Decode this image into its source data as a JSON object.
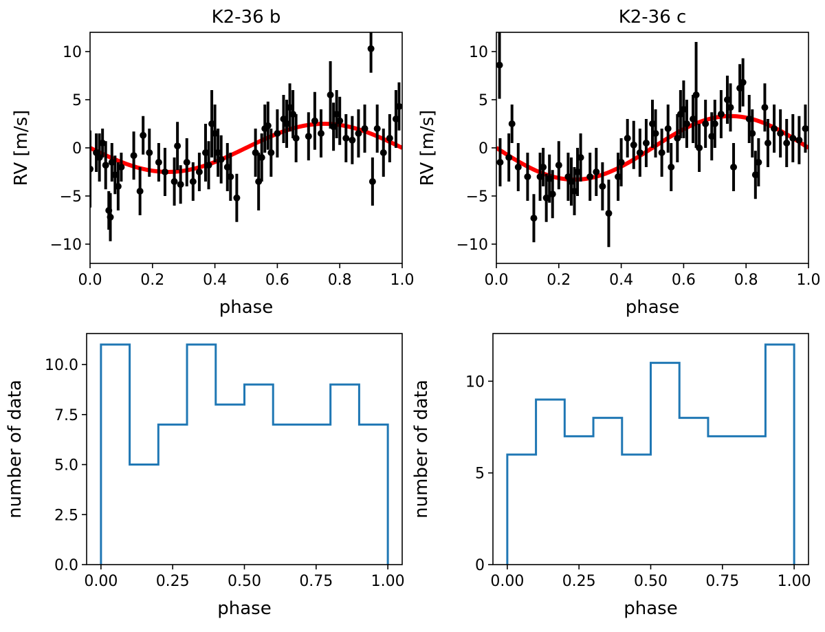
{
  "chart_data": [
    {
      "id": "rv_b",
      "type": "scatter",
      "title": "K2-36 b",
      "xlabel": "phase",
      "ylabel": "RV [m/s]",
      "xlim": [
        0.0,
        1.0
      ],
      "ylim": [
        -12,
        12
      ],
      "xticks": [
        0.0,
        0.2,
        0.4,
        0.6,
        0.8,
        1.0
      ],
      "xtick_labels": [
        "0.0",
        "0.2",
        "0.4",
        "0.6",
        "0.8",
        "1.0"
      ],
      "yticks": [
        -10,
        -5,
        0,
        5,
        10
      ],
      "ytick_labels": [
        "−10",
        "−5",
        "0",
        "5",
        "10"
      ],
      "model": {
        "name": "model",
        "type": "sinusoid",
        "amplitude": 2.5,
        "color": "#ff0000"
      },
      "points": [
        {
          "x": 0.0,
          "y": -2.2,
          "err": 4.0
        },
        {
          "x": 0.02,
          "y": -0.5,
          "err": 2.0
        },
        {
          "x": 0.03,
          "y": -1.0,
          "err": 2.5
        },
        {
          "x": 0.04,
          "y": 0.5,
          "err": 1.5
        },
        {
          "x": 0.05,
          "y": -1.8,
          "err": 2.5
        },
        {
          "x": 0.06,
          "y": -6.5,
          "err": 2.0
        },
        {
          "x": 0.065,
          "y": -7.2,
          "err": 2.5
        },
        {
          "x": 0.07,
          "y": -1.5,
          "err": 2.0
        },
        {
          "x": 0.08,
          "y": -2.8,
          "err": 2.0
        },
        {
          "x": 0.09,
          "y": -4.0,
          "err": 2.5
        },
        {
          "x": 0.1,
          "y": -2.0,
          "err": 1.5
        },
        {
          "x": 0.14,
          "y": -0.8,
          "err": 2.5
        },
        {
          "x": 0.16,
          "y": -4.5,
          "err": 2.5
        },
        {
          "x": 0.17,
          "y": 1.3,
          "err": 2.0
        },
        {
          "x": 0.19,
          "y": -0.5,
          "err": 2.5
        },
        {
          "x": 0.22,
          "y": -1.5,
          "err": 2.0
        },
        {
          "x": 0.24,
          "y": -2.5,
          "err": 2.5
        },
        {
          "x": 0.27,
          "y": -3.5,
          "err": 2.5
        },
        {
          "x": 0.28,
          "y": 0.2,
          "err": 2.5
        },
        {
          "x": 0.29,
          "y": -3.8,
          "err": 2.0
        },
        {
          "x": 0.31,
          "y": -1.5,
          "err": 2.5
        },
        {
          "x": 0.33,
          "y": -3.5,
          "err": 2.0
        },
        {
          "x": 0.35,
          "y": -2.5,
          "err": 2.0
        },
        {
          "x": 0.37,
          "y": -0.5,
          "err": 3.0
        },
        {
          "x": 0.38,
          "y": -1.8,
          "err": 2.5
        },
        {
          "x": 0.39,
          "y": 2.5,
          "err": 3.5
        },
        {
          "x": 0.4,
          "y": 1.5,
          "err": 3.0
        },
        {
          "x": 0.41,
          "y": -0.5,
          "err": 2.5
        },
        {
          "x": 0.42,
          "y": -1.2,
          "err": 2.5
        },
        {
          "x": 0.44,
          "y": -2.0,
          "err": 2.5
        },
        {
          "x": 0.45,
          "y": -3.0,
          "err": 2.5
        },
        {
          "x": 0.47,
          "y": -5.2,
          "err": 2.5
        },
        {
          "x": 0.53,
          "y": -0.5,
          "err": 2.5
        },
        {
          "x": 0.54,
          "y": -3.5,
          "err": 3.0
        },
        {
          "x": 0.55,
          "y": -1.0,
          "err": 2.5
        },
        {
          "x": 0.56,
          "y": 2.0,
          "err": 2.5
        },
        {
          "x": 0.57,
          "y": 2.3,
          "err": 2.5
        },
        {
          "x": 0.58,
          "y": -0.5,
          "err": 2.5
        },
        {
          "x": 0.6,
          "y": 1.5,
          "err": 2.5
        },
        {
          "x": 0.62,
          "y": 3.0,
          "err": 2.5
        },
        {
          "x": 0.63,
          "y": 2.5,
          "err": 2.5
        },
        {
          "x": 0.64,
          "y": 4.2,
          "err": 2.5
        },
        {
          "x": 0.65,
          "y": 3.5,
          "err": 2.5
        },
        {
          "x": 0.66,
          "y": 1.0,
          "err": 2.5
        },
        {
          "x": 0.7,
          "y": 1.2,
          "err": 2.5
        },
        {
          "x": 0.72,
          "y": 2.8,
          "err": 3.0
        },
        {
          "x": 0.74,
          "y": 1.5,
          "err": 2.5
        },
        {
          "x": 0.77,
          "y": 5.5,
          "err": 3.5
        },
        {
          "x": 0.78,
          "y": 2.2,
          "err": 2.5
        },
        {
          "x": 0.79,
          "y": 3.5,
          "err": 2.5
        },
        {
          "x": 0.8,
          "y": 2.8,
          "err": 2.5
        },
        {
          "x": 0.82,
          "y": 1.0,
          "err": 2.5
        },
        {
          "x": 0.84,
          "y": 0.8,
          "err": 2.5
        },
        {
          "x": 0.86,
          "y": 1.5,
          "err": 2.5
        },
        {
          "x": 0.88,
          "y": 2.0,
          "err": 2.5
        },
        {
          "x": 0.9,
          "y": 10.3,
          "err": 2.5
        },
        {
          "x": 0.905,
          "y": -3.5,
          "err": 2.5
        },
        {
          "x": 0.92,
          "y": 2.0,
          "err": 2.5
        },
        {
          "x": 0.94,
          "y": -0.5,
          "err": 2.5
        },
        {
          "x": 0.96,
          "y": 1.0,
          "err": 2.5
        },
        {
          "x": 0.98,
          "y": 3.0,
          "err": 3.0
        },
        {
          "x": 0.99,
          "y": 4.3,
          "err": 2.5
        }
      ]
    },
    {
      "id": "rv_c",
      "type": "scatter",
      "title": "K2-36 c",
      "xlabel": "phase",
      "ylabel": "RV [m/s]",
      "xlim": [
        0.0,
        1.0
      ],
      "ylim": [
        -12,
        12
      ],
      "xticks": [
        0.0,
        0.2,
        0.4,
        0.6,
        0.8,
        1.0
      ],
      "xtick_labels": [
        "0.0",
        "0.2",
        "0.4",
        "0.6",
        "0.8",
        "1.0"
      ],
      "yticks": [
        -10,
        -5,
        0,
        5,
        10
      ],
      "ytick_labels": [
        "−10",
        "−5",
        "0",
        "5",
        "10"
      ],
      "model": {
        "name": "model",
        "type": "sinusoid",
        "amplitude": 3.3,
        "color": "#ff0000"
      },
      "points": [
        {
          "x": 0.01,
          "y": 8.6,
          "err": 3.5
        },
        {
          "x": 0.012,
          "y": -1.5,
          "err": 2.5
        },
        {
          "x": 0.04,
          "y": -1.0,
          "err": 2.5
        },
        {
          "x": 0.05,
          "y": 2.5,
          "err": 2.0
        },
        {
          "x": 0.07,
          "y": -2.0,
          "err": 2.5
        },
        {
          "x": 0.1,
          "y": -3.0,
          "err": 2.5
        },
        {
          "x": 0.12,
          "y": -7.3,
          "err": 2.5
        },
        {
          "x": 0.14,
          "y": -3.0,
          "err": 2.5
        },
        {
          "x": 0.15,
          "y": -2.0,
          "err": 2.0
        },
        {
          "x": 0.16,
          "y": -5.2,
          "err": 2.5
        },
        {
          "x": 0.17,
          "y": -3.2,
          "err": 2.5
        },
        {
          "x": 0.18,
          "y": -4.8,
          "err": 2.5
        },
        {
          "x": 0.2,
          "y": -1.8,
          "err": 2.5
        },
        {
          "x": 0.23,
          "y": -3.0,
          "err": 2.5
        },
        {
          "x": 0.24,
          "y": -3.5,
          "err": 2.5
        },
        {
          "x": 0.25,
          "y": -4.5,
          "err": 2.5
        },
        {
          "x": 0.26,
          "y": -2.5,
          "err": 2.5
        },
        {
          "x": 0.27,
          "y": -1.0,
          "err": 2.5
        },
        {
          "x": 0.3,
          "y": -3.0,
          "err": 2.5
        },
        {
          "x": 0.32,
          "y": -2.5,
          "err": 2.5
        },
        {
          "x": 0.34,
          "y": -4.0,
          "err": 2.5
        },
        {
          "x": 0.36,
          "y": -6.8,
          "err": 3.5
        },
        {
          "x": 0.39,
          "y": -3.0,
          "err": 2.5
        },
        {
          "x": 0.4,
          "y": -1.5,
          "err": 2.5
        },
        {
          "x": 0.42,
          "y": 1.0,
          "err": 2.0
        },
        {
          "x": 0.44,
          "y": 0.3,
          "err": 2.5
        },
        {
          "x": 0.46,
          "y": -0.5,
          "err": 2.5
        },
        {
          "x": 0.48,
          "y": 0.5,
          "err": 2.5
        },
        {
          "x": 0.5,
          "y": 2.5,
          "err": 2.5
        },
        {
          "x": 0.51,
          "y": 1.5,
          "err": 2.5
        },
        {
          "x": 0.53,
          "y": -0.5,
          "err": 2.5
        },
        {
          "x": 0.55,
          "y": 2.0,
          "err": 2.5
        },
        {
          "x": 0.56,
          "y": -2.0,
          "err": 2.5
        },
        {
          "x": 0.58,
          "y": 1.0,
          "err": 2.5
        },
        {
          "x": 0.59,
          "y": 3.5,
          "err": 2.5
        },
        {
          "x": 0.6,
          "y": 4.0,
          "err": 3.0
        },
        {
          "x": 0.61,
          "y": 2.5,
          "err": 2.5
        },
        {
          "x": 0.63,
          "y": 3.0,
          "err": 2.5
        },
        {
          "x": 0.64,
          "y": 5.5,
          "err": 5.5
        },
        {
          "x": 0.65,
          "y": 0.0,
          "err": 2.5
        },
        {
          "x": 0.67,
          "y": 2.5,
          "err": 2.5
        },
        {
          "x": 0.69,
          "y": 1.2,
          "err": 2.5
        },
        {
          "x": 0.7,
          "y": 2.5,
          "err": 2.5
        },
        {
          "x": 0.72,
          "y": 3.5,
          "err": 2.5
        },
        {
          "x": 0.74,
          "y": 5.0,
          "err": 2.5
        },
        {
          "x": 0.75,
          "y": 4.2,
          "err": 2.5
        },
        {
          "x": 0.76,
          "y": -2.0,
          "err": 2.5
        },
        {
          "x": 0.78,
          "y": 6.2,
          "err": 2.5
        },
        {
          "x": 0.79,
          "y": 6.8,
          "err": 2.5
        },
        {
          "x": 0.81,
          "y": 3.0,
          "err": 2.5
        },
        {
          "x": 0.82,
          "y": 1.5,
          "err": 2.5
        },
        {
          "x": 0.83,
          "y": -2.8,
          "err": 2.5
        },
        {
          "x": 0.84,
          "y": -1.5,
          "err": 2.5
        },
        {
          "x": 0.86,
          "y": 4.2,
          "err": 2.5
        },
        {
          "x": 0.87,
          "y": 0.5,
          "err": 2.5
        },
        {
          "x": 0.89,
          "y": 2.0,
          "err": 2.5
        },
        {
          "x": 0.91,
          "y": 1.5,
          "err": 2.5
        },
        {
          "x": 0.93,
          "y": 0.5,
          "err": 2.5
        },
        {
          "x": 0.95,
          "y": 1.0,
          "err": 2.5
        },
        {
          "x": 0.97,
          "y": 0.8,
          "err": 2.5
        },
        {
          "x": 0.99,
          "y": 2.0,
          "err": 2.5
        }
      ]
    },
    {
      "id": "hist_b",
      "type": "bar",
      "title": "",
      "xlabel": "phase",
      "ylabel": "number of data",
      "histtype": "step",
      "color": "#1f77b4",
      "bin_edges": [
        0.0,
        0.1,
        0.2,
        0.3,
        0.4,
        0.5,
        0.6,
        0.7,
        0.8,
        0.9,
        1.0
      ],
      "values": [
        11,
        5,
        7,
        11,
        8,
        9,
        7,
        7,
        9,
        7
      ],
      "xlim": [
        -0.05,
        1.05
      ],
      "ylim": [
        0,
        11.55
      ],
      "xticks": [
        0.0,
        0.25,
        0.5,
        0.75,
        1.0
      ],
      "xtick_labels": [
        "0.00",
        "0.25",
        "0.50",
        "0.75",
        "1.00"
      ],
      "yticks": [
        0,
        2.5,
        5,
        7.5,
        10
      ],
      "ytick_labels": [
        "0.0",
        "2.5",
        "5.0",
        "7.5",
        "10.0"
      ]
    },
    {
      "id": "hist_c",
      "type": "bar",
      "title": "",
      "xlabel": "phase",
      "ylabel": "number of data",
      "histtype": "step",
      "color": "#1f77b4",
      "bin_edges": [
        0.0,
        0.1,
        0.2,
        0.3,
        0.4,
        0.5,
        0.6,
        0.7,
        0.8,
        0.9,
        1.0
      ],
      "values": [
        6,
        9,
        7,
        8,
        6,
        11,
        8,
        7,
        7,
        12
      ],
      "xlim": [
        -0.05,
        1.05
      ],
      "ylim": [
        0,
        12.6
      ],
      "xticks": [
        0.0,
        0.25,
        0.5,
        0.75,
        1.0
      ],
      "xtick_labels": [
        "0.00",
        "0.25",
        "0.50",
        "0.75",
        "1.00"
      ],
      "yticks": [
        0,
        5,
        10
      ],
      "ytick_labels": [
        "0",
        "5",
        "10"
      ]
    }
  ]
}
